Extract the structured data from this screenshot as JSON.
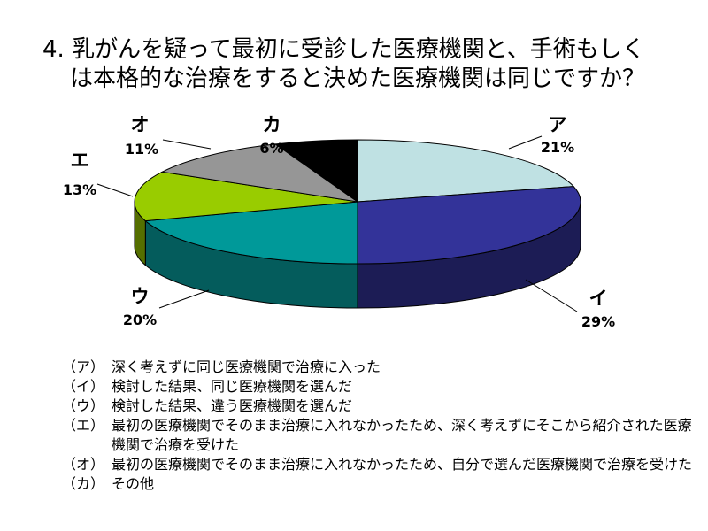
{
  "title": {
    "line1": "4. 乳がんを疑って最初に受診した医療機関と、手術もしく",
    "line2": "は本格的な治療をすると決めた医療機関は同じですか？"
  },
  "chart_data": {
    "type": "pie",
    "three_d": true,
    "slices": [
      {
        "label": "ア",
        "value": 21,
        "pct_label": "21%",
        "color": "#bfe1e3",
        "side_color": "#8cb0b3"
      },
      {
        "label": "イ",
        "value": 29,
        "pct_label": "29%",
        "color": "#333399",
        "side_color": "#1c1c55"
      },
      {
        "label": "ウ",
        "value": 20,
        "pct_label": "20%",
        "color": "#009999",
        "side_color": "#045c5c"
      },
      {
        "label": "エ",
        "value": 13,
        "pct_label": "13%",
        "color": "#99cc00",
        "side_color": "#556f00"
      },
      {
        "label": "オ",
        "value": 11,
        "pct_label": "11%",
        "color": "#969696",
        "side_color": "#5a5a5a"
      },
      {
        "label": "カ",
        "value": 6,
        "pct_label": "6%",
        "color": "#000000",
        "side_color": "#000000"
      }
    ]
  },
  "legend": [
    {
      "key": "（ア）",
      "text": "深く考えずに同じ医療機関で治療に入った"
    },
    {
      "key": "（イ）",
      "text": "検討した結果、同じ医療機関を選んだ"
    },
    {
      "key": "（ウ）",
      "text": "検討した結果、違う医療機関を選んだ"
    },
    {
      "key": "（エ）",
      "text": "最初の医療機関でそのまま治療に入れなかったため、深く考えずにそこから紹介された医療機関で治療を受けた"
    },
    {
      "key": "（オ）",
      "text": "最初の医療機関でそのまま治療に入れなかったため、自分で選んだ医療機関で治療を受けた"
    },
    {
      "key": "（カ）",
      "text": "その他"
    }
  ]
}
